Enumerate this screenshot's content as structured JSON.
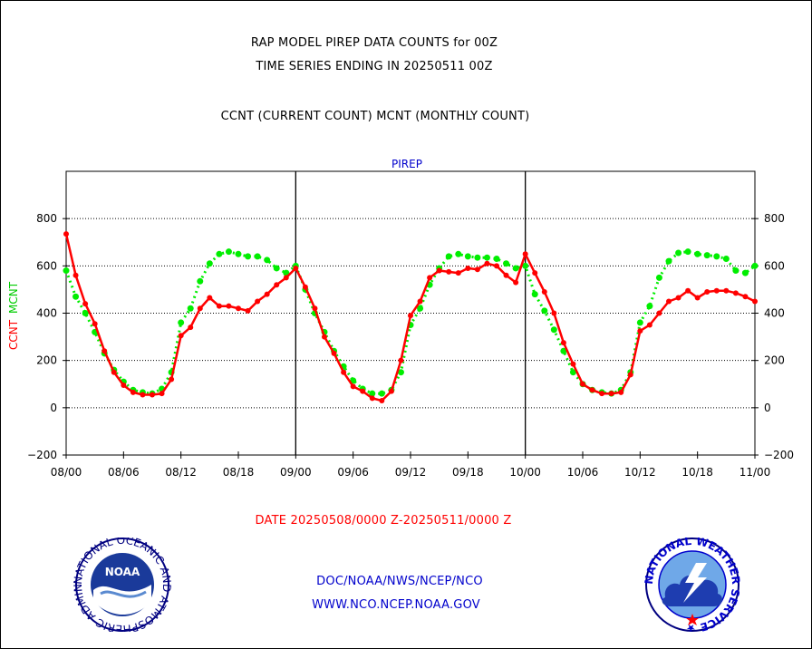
{
  "header": {
    "title": "RAP MODEL PIREP DATA COUNTS for 00Z",
    "subtitle": "TIME SERIES ENDING IN 20250511 00Z",
    "counts_legend": "CCNT (CURRENT COUNT) MCNT (MONTHLY COUNT)"
  },
  "footer": {
    "date_range": "DATE 20250508/0000 Z-20250511/0000 Z",
    "org_line": "DOC/NOAA/NWS/NCEP/NCO",
    "website": "WWW.NCO.NCEP.NOAA.GOV"
  },
  "logos": {
    "noaa_text": "NOAA",
    "noaa_ring": "NATIONAL OCEANIC AND ATMOSPHERIC ADMINISTRATION · U.S. DEPARTMENT OF COMMERCE ·",
    "nws_ring": "NATIONAL WEATHER SERVICE ★"
  },
  "colors": {
    "ccnt": "#ff0000",
    "mcnt": "#00ee00",
    "panel_title": "#0000cc",
    "footer_blue": "#0000cc",
    "date_red": "#ff0000"
  },
  "chart_data": {
    "type": "line",
    "title": "PIREP",
    "ylabel_ccnt": "CCNT",
    "ylabel_mcnt": "MCNT",
    "xlim": [
      0,
      72
    ],
    "ylim": [
      -200,
      1000
    ],
    "x_ticks": [
      0,
      6,
      12,
      18,
      24,
      30,
      36,
      42,
      48,
      54,
      60,
      66,
      72
    ],
    "x_tick_labels": [
      "08/00",
      "08/06",
      "08/12",
      "08/18",
      "09/00",
      "09/06",
      "09/12",
      "09/18",
      "10/00",
      "10/06",
      "10/12",
      "10/18",
      "11/00"
    ],
    "y_ticks": [
      -200,
      0,
      200,
      400,
      600,
      800
    ],
    "y_tick_labels": [
      "−200",
      "0",
      "200",
      "400",
      "600",
      "800"
    ],
    "day_boundaries": [
      24,
      48
    ],
    "gridlines_y": [
      0,
      200,
      400,
      600,
      800
    ],
    "series": [
      {
        "name": "CCNT",
        "x": [
          0,
          1,
          2,
          3,
          4,
          5,
          6,
          7,
          8,
          9,
          10,
          11,
          12,
          13,
          14,
          15,
          16,
          17,
          18,
          19,
          20,
          21,
          22,
          23,
          24,
          25,
          26,
          27,
          28,
          29,
          30,
          31,
          32,
          33,
          34,
          35,
          36,
          37,
          38,
          39,
          40,
          41,
          42,
          43,
          44,
          45,
          46,
          47,
          48,
          49,
          50,
          51,
          52,
          53,
          54,
          55,
          56,
          57,
          58,
          59,
          60,
          61,
          62,
          63,
          64,
          65,
          66,
          67,
          68,
          69,
          70,
          71,
          72
        ],
        "values": [
          735,
          560,
          440,
          355,
          240,
          150,
          95,
          65,
          55,
          55,
          60,
          120,
          305,
          340,
          420,
          465,
          430,
          430,
          420,
          410,
          450,
          480,
          520,
          550,
          590,
          510,
          420,
          300,
          230,
          150,
          90,
          70,
          40,
          30,
          70,
          200,
          390,
          450,
          550,
          580,
          575,
          570,
          590,
          585,
          610,
          600,
          560,
          530,
          650,
          570,
          490,
          400,
          275,
          185,
          100,
          75,
          60,
          60,
          65,
          140,
          325,
          350,
          400,
          450,
          465,
          495,
          465,
          490,
          495,
          495,
          485,
          470,
          450
        ]
      },
      {
        "name": "MCNT",
        "x": [
          0,
          1,
          2,
          3,
          4,
          5,
          6,
          7,
          8,
          9,
          10,
          11,
          12,
          13,
          14,
          15,
          16,
          17,
          18,
          19,
          20,
          21,
          22,
          23,
          24,
          25,
          26,
          27,
          28,
          29,
          30,
          31,
          32,
          33,
          34,
          35,
          36,
          37,
          38,
          39,
          40,
          41,
          42,
          43,
          44,
          45,
          46,
          47,
          48,
          49,
          50,
          51,
          52,
          53,
          54,
          55,
          56,
          57,
          58,
          59,
          60,
          61,
          62,
          63,
          64,
          65,
          66,
          67,
          68,
          69,
          70,
          71,
          72
        ],
        "values": [
          580,
          470,
          400,
          320,
          230,
          160,
          110,
          75,
          65,
          60,
          80,
          150,
          360,
          420,
          535,
          610,
          650,
          660,
          650,
          640,
          640,
          625,
          590,
          570,
          600,
          500,
          400,
          320,
          240,
          175,
          115,
          80,
          60,
          60,
          75,
          150,
          350,
          420,
          520,
          590,
          640,
          650,
          640,
          635,
          635,
          630,
          610,
          590,
          600,
          480,
          410,
          330,
          240,
          150,
          100,
          75,
          65,
          60,
          75,
          150,
          360,
          430,
          550,
          620,
          655,
          660,
          650,
          645,
          640,
          630,
          580,
          570,
          600
        ]
      }
    ]
  }
}
